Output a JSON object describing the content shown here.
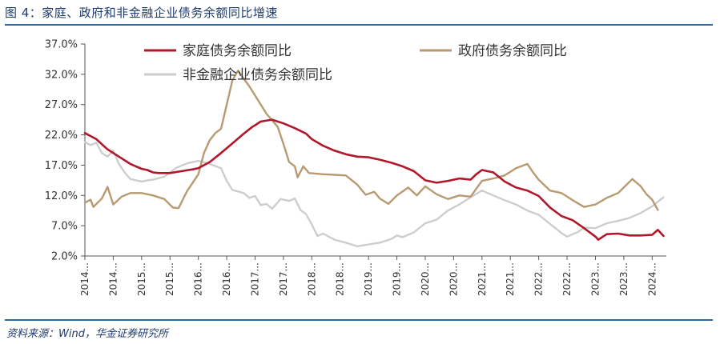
{
  "figure": {
    "title": "图 4：家庭、政府和非金融企业债务余额同比增速",
    "source": "资料来源：Wind，华金证券研究所"
  },
  "chart_data": {
    "type": "line",
    "title": "图 4：家庭、政府和非金融企业债务余额同比增速",
    "xlabel": "",
    "ylabel": "",
    "ylim": [
      2.0,
      37.0
    ],
    "yticks": [
      2.0,
      7.0,
      12.0,
      17.0,
      22.0,
      27.0,
      32.0,
      37.0
    ],
    "ytick_labels": [
      "2.0%",
      "7.0%",
      "12.0%",
      "17.0%",
      "22.0%",
      "27.0%",
      "32.0%",
      "37.0%"
    ],
    "xlim": [
      2014.0,
      2024.25
    ],
    "xticks": [
      2014.0,
      2014.5,
      2015.0,
      2015.5,
      2016.0,
      2016.5,
      2017.0,
      2017.5,
      2018.0,
      2018.5,
      2019.0,
      2019.5,
      2020.0,
      2020.5,
      2021.0,
      2021.5,
      2022.0,
      2022.5,
      2023.0,
      2023.5,
      2024.0
    ],
    "xtick_labels": [
      "2014...",
      "2014...",
      "2015...",
      "2015...",
      "2016...",
      "2016...",
      "2017...",
      "2017...",
      "2018...",
      "2018...",
      "2019...",
      "2019...",
      "2020...",
      "2020...",
      "2021...",
      "2021...",
      "2022...",
      "2022...",
      "2023...",
      "2023...",
      "2024..."
    ],
    "grid": false,
    "legend_position": "top",
    "series": [
      {
        "name": "家庭债务余额同比",
        "color": "#b0182a",
        "points": [
          [
            2014.0,
            22.3
          ],
          [
            2014.2,
            21.3
          ],
          [
            2014.4,
            19.6
          ],
          [
            2014.6,
            18.4
          ],
          [
            2014.8,
            17.2
          ],
          [
            2015.0,
            16.4
          ],
          [
            2015.1,
            16.2
          ],
          [
            2015.2,
            15.8
          ],
          [
            2015.3,
            15.7
          ],
          [
            2015.5,
            15.7
          ],
          [
            2015.7,
            16.0
          ],
          [
            2015.9,
            16.3
          ],
          [
            2016.0,
            16.5
          ],
          [
            2016.2,
            17.5
          ],
          [
            2016.4,
            19.0
          ],
          [
            2016.6,
            20.6
          ],
          [
            2016.8,
            22.2
          ],
          [
            2016.95,
            23.3
          ],
          [
            2017.0,
            23.6
          ],
          [
            2017.1,
            24.2
          ],
          [
            2017.3,
            24.5
          ],
          [
            2017.5,
            23.9
          ],
          [
            2017.7,
            23.1
          ],
          [
            2017.9,
            22.2
          ],
          [
            2018.0,
            21.3
          ],
          [
            2018.2,
            20.2
          ],
          [
            2018.4,
            19.4
          ],
          [
            2018.6,
            18.8
          ],
          [
            2018.8,
            18.4
          ],
          [
            2019.0,
            18.3
          ],
          [
            2019.2,
            17.9
          ],
          [
            2019.4,
            17.4
          ],
          [
            2019.6,
            16.8
          ],
          [
            2019.8,
            16.0
          ],
          [
            2020.0,
            14.5
          ],
          [
            2020.2,
            14.1
          ],
          [
            2020.4,
            14.4
          ],
          [
            2020.6,
            14.8
          ],
          [
            2020.8,
            14.6
          ],
          [
            2020.9,
            15.5
          ],
          [
            2021.0,
            16.2
          ],
          [
            2021.2,
            15.8
          ],
          [
            2021.4,
            14.3
          ],
          [
            2021.6,
            13.3
          ],
          [
            2021.8,
            12.8
          ],
          [
            2022.0,
            11.9
          ],
          [
            2022.2,
            10.0
          ],
          [
            2022.4,
            8.6
          ],
          [
            2022.6,
            7.9
          ],
          [
            2022.8,
            6.6
          ],
          [
            2023.0,
            5.2
          ],
          [
            2023.05,
            4.7
          ],
          [
            2023.2,
            5.6
          ],
          [
            2023.4,
            5.7
          ],
          [
            2023.6,
            5.4
          ],
          [
            2023.8,
            5.4
          ],
          [
            2024.0,
            5.5
          ],
          [
            2024.1,
            6.3
          ],
          [
            2024.2,
            5.3
          ]
        ]
      },
      {
        "name": "政府债务余额同比",
        "color": "#b89a72",
        "points": [
          [
            2014.0,
            10.8
          ],
          [
            2014.1,
            11.3
          ],
          [
            2014.15,
            10.1
          ],
          [
            2014.3,
            11.5
          ],
          [
            2014.4,
            13.4
          ],
          [
            2014.5,
            10.5
          ],
          [
            2014.65,
            11.8
          ],
          [
            2014.8,
            12.4
          ],
          [
            2015.0,
            12.4
          ],
          [
            2015.2,
            12.0
          ],
          [
            2015.4,
            11.4
          ],
          [
            2015.55,
            10.0
          ],
          [
            2015.65,
            9.9
          ],
          [
            2015.8,
            12.7
          ],
          [
            2016.0,
            15.5
          ],
          [
            2016.1,
            19.0
          ],
          [
            2016.2,
            21.1
          ],
          [
            2016.3,
            22.3
          ],
          [
            2016.4,
            23.0
          ],
          [
            2016.5,
            27.0
          ],
          [
            2016.6,
            31.0
          ],
          [
            2016.7,
            32.6
          ],
          [
            2016.8,
            31.3
          ],
          [
            2016.9,
            30.0
          ],
          [
            2017.0,
            28.5
          ],
          [
            2017.2,
            25.5
          ],
          [
            2017.4,
            23.3
          ],
          [
            2017.5,
            20.5
          ],
          [
            2017.6,
            17.5
          ],
          [
            2017.7,
            16.8
          ],
          [
            2017.75,
            15.0
          ],
          [
            2017.85,
            16.8
          ],
          [
            2017.95,
            15.7
          ],
          [
            2018.2,
            15.5
          ],
          [
            2018.4,
            15.4
          ],
          [
            2018.6,
            15.3
          ],
          [
            2018.8,
            13.8
          ],
          [
            2018.95,
            12.1
          ],
          [
            2019.1,
            12.6
          ],
          [
            2019.2,
            11.5
          ],
          [
            2019.35,
            10.6
          ],
          [
            2019.5,
            12.0
          ],
          [
            2019.7,
            13.3
          ],
          [
            2019.85,
            12.0
          ],
          [
            2020.0,
            13.5
          ],
          [
            2020.2,
            12.2
          ],
          [
            2020.4,
            11.4
          ],
          [
            2020.6,
            12.0
          ],
          [
            2020.8,
            11.8
          ],
          [
            2021.0,
            14.4
          ],
          [
            2021.2,
            14.8
          ],
          [
            2021.4,
            15.3
          ],
          [
            2021.6,
            16.5
          ],
          [
            2021.8,
            17.2
          ],
          [
            2021.9,
            15.8
          ],
          [
            2022.0,
            14.6
          ],
          [
            2022.2,
            12.8
          ],
          [
            2022.4,
            12.4
          ],
          [
            2022.6,
            11.2
          ],
          [
            2022.8,
            10.1
          ],
          [
            2023.0,
            10.5
          ],
          [
            2023.2,
            11.6
          ],
          [
            2023.4,
            12.4
          ],
          [
            2023.5,
            13.3
          ],
          [
            2023.65,
            14.7
          ],
          [
            2023.8,
            13.5
          ],
          [
            2023.9,
            12.2
          ],
          [
            2024.0,
            11.3
          ],
          [
            2024.1,
            9.6
          ]
        ]
      },
      {
        "name": "非金融企业债务余额同比",
        "color": "#cdcdcd",
        "points": [
          [
            2014.0,
            20.8
          ],
          [
            2014.1,
            20.3
          ],
          [
            2014.2,
            20.7
          ],
          [
            2014.3,
            19.0
          ],
          [
            2014.4,
            18.4
          ],
          [
            2014.5,
            19.4
          ],
          [
            2014.6,
            17.2
          ],
          [
            2014.7,
            15.8
          ],
          [
            2014.8,
            14.7
          ],
          [
            2015.0,
            14.3
          ],
          [
            2015.1,
            14.5
          ],
          [
            2015.2,
            14.6
          ],
          [
            2015.4,
            15.1
          ],
          [
            2015.6,
            16.5
          ],
          [
            2015.8,
            17.3
          ],
          [
            2016.0,
            17.7
          ],
          [
            2016.2,
            17.2
          ],
          [
            2016.4,
            16.5
          ],
          [
            2016.5,
            14.4
          ],
          [
            2016.6,
            12.9
          ],
          [
            2016.8,
            12.4
          ],
          [
            2016.9,
            11.6
          ],
          [
            2017.0,
            11.9
          ],
          [
            2017.1,
            10.4
          ],
          [
            2017.2,
            10.6
          ],
          [
            2017.3,
            9.8
          ],
          [
            2017.45,
            11.4
          ],
          [
            2017.6,
            11.1
          ],
          [
            2017.7,
            11.5
          ],
          [
            2017.8,
            9.6
          ],
          [
            2017.9,
            8.9
          ],
          [
            2018.0,
            7.2
          ],
          [
            2018.1,
            5.3
          ],
          [
            2018.2,
            5.7
          ],
          [
            2018.4,
            4.7
          ],
          [
            2018.6,
            4.2
          ],
          [
            2018.8,
            3.6
          ],
          [
            2019.0,
            3.9
          ],
          [
            2019.2,
            4.2
          ],
          [
            2019.4,
            4.8
          ],
          [
            2019.5,
            5.4
          ],
          [
            2019.6,
            5.1
          ],
          [
            2019.8,
            5.9
          ],
          [
            2020.0,
            7.4
          ],
          [
            2020.2,
            8.0
          ],
          [
            2020.4,
            9.5
          ],
          [
            2020.6,
            10.5
          ],
          [
            2020.8,
            11.7
          ],
          [
            2021.0,
            12.8
          ],
          [
            2021.2,
            12.0
          ],
          [
            2021.4,
            11.2
          ],
          [
            2021.6,
            10.5
          ],
          [
            2021.8,
            9.5
          ],
          [
            2022.0,
            8.8
          ],
          [
            2022.2,
            7.3
          ],
          [
            2022.4,
            5.8
          ],
          [
            2022.5,
            5.2
          ],
          [
            2022.7,
            6.0
          ],
          [
            2022.8,
            6.7
          ],
          [
            2023.0,
            6.6
          ],
          [
            2023.2,
            7.4
          ],
          [
            2023.4,
            7.8
          ],
          [
            2023.6,
            8.3
          ],
          [
            2023.8,
            9.1
          ],
          [
            2024.0,
            10.2
          ],
          [
            2024.2,
            11.7
          ]
        ]
      }
    ]
  }
}
